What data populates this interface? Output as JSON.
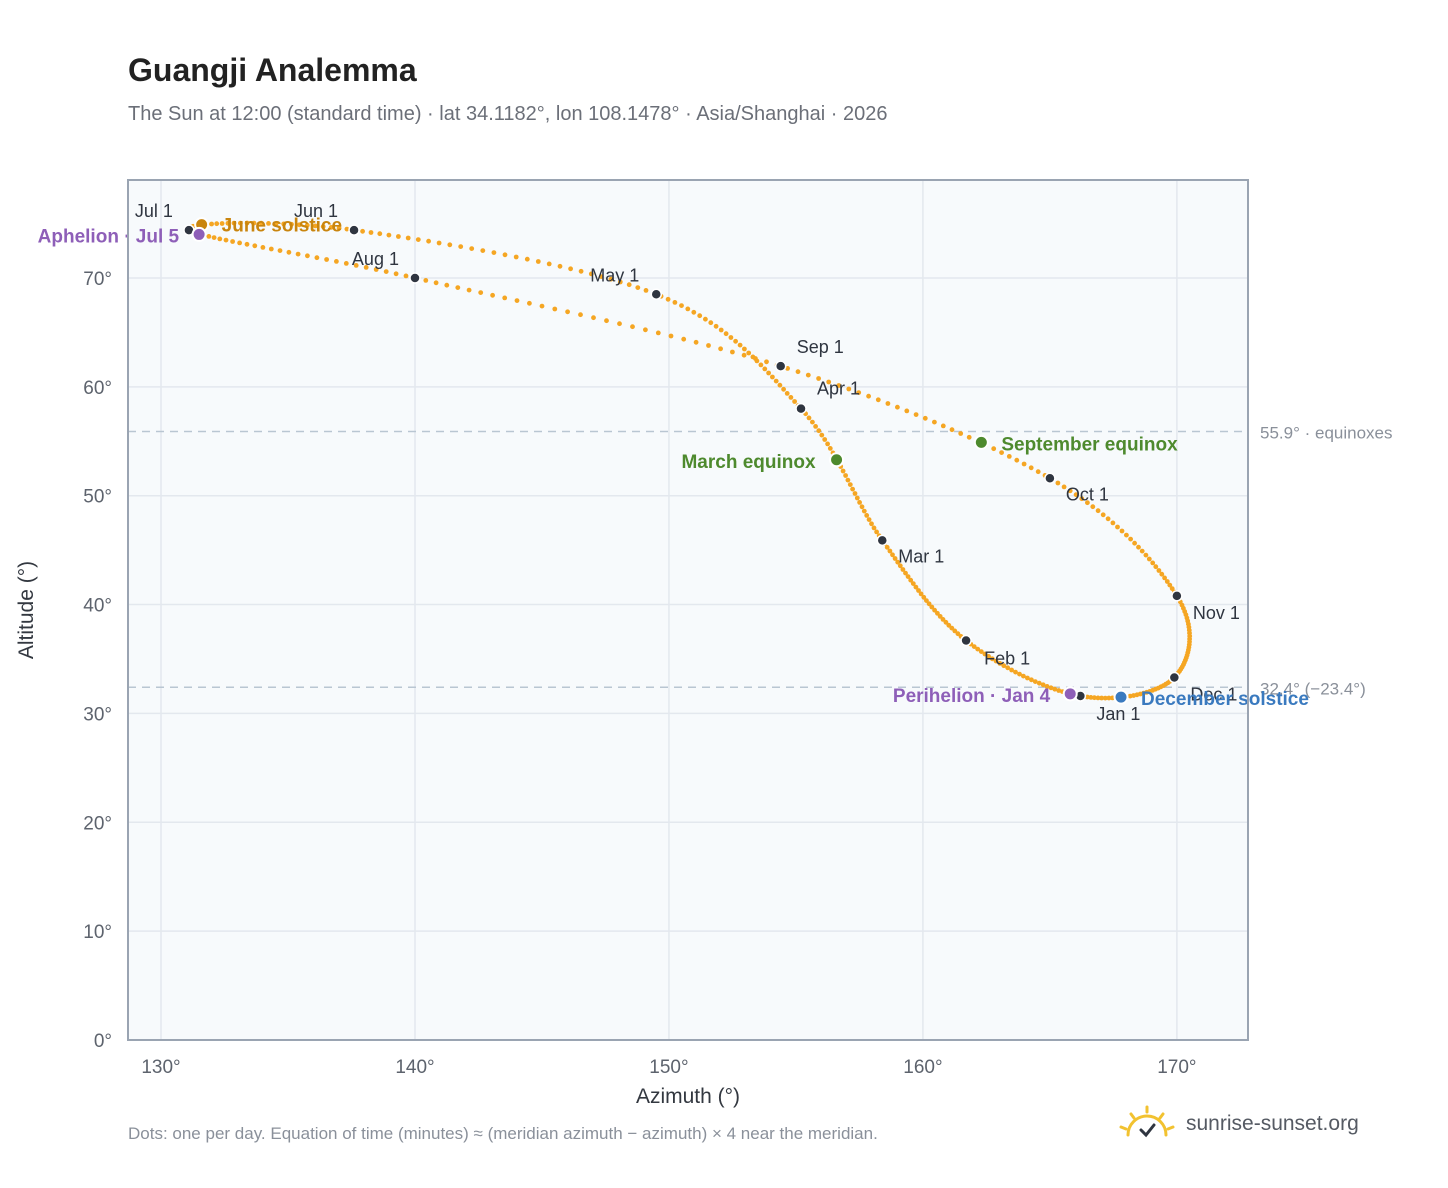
{
  "header": {
    "title": "Guangji Analemma",
    "subtitle": "The Sun at 12:00 (standard time) · lat 34.1182°, lon 108.1478° · Asia/Shanghai · 2026"
  },
  "footer": {
    "note": "Dots: one per day. Equation of time (minutes) ≈ (meridian azimuth − azimuth) × 4 near the meridian.",
    "brand": "sunrise-sunset.org",
    "brand_icon": "sun-icon",
    "brand_color": "#f2c230"
  },
  "chart_data": {
    "type": "scatter",
    "xlabel": "Azimuth (°)",
    "ylabel": "Altitude (°)",
    "xlim": [
      128.7,
      172.8
    ],
    "ylim": [
      0,
      79
    ],
    "x_ticks": [
      130,
      140,
      150,
      160,
      170
    ],
    "y_ticks": [
      0,
      10,
      20,
      30,
      40,
      50,
      60,
      70
    ],
    "tick_suffix": "°",
    "grid": true,
    "colors": {
      "curve": "#f5a623",
      "month_marker": "#2f3540",
      "solstice_june": "#c9850e",
      "solstice_december": "#3a7abf",
      "equinox": "#4e8a2e",
      "apsis": "#8e5fb8",
      "reference_line": "#b9c6d2",
      "plot_bg": "#f7fafc",
      "frame": "#9aa4b2",
      "grid": "#e3e8ee"
    },
    "reference_lines": [
      {
        "y": 55.9,
        "label": "55.9° · equinoxes"
      },
      {
        "y": 32.4,
        "label": "32.4° (−23.4°)"
      }
    ],
    "month_markers": [
      {
        "label": "Jan 1",
        "azimuth": 166.2,
        "altitude": 31.6
      },
      {
        "label": "Feb 1",
        "azimuth": 161.7,
        "altitude": 36.7
      },
      {
        "label": "Mar 1",
        "azimuth": 158.4,
        "altitude": 45.9
      },
      {
        "label": "Apr 1",
        "azimuth": 155.2,
        "altitude": 58.0
      },
      {
        "label": "May 1",
        "azimuth": 149.5,
        "altitude": 68.5
      },
      {
        "label": "Jun 1",
        "azimuth": 137.6,
        "altitude": 74.4
      },
      {
        "label": "Jul 1",
        "azimuth": 131.1,
        "altitude": 74.4
      },
      {
        "label": "Aug 1",
        "azimuth": 140.0,
        "altitude": 70.0
      },
      {
        "label": "Sep 1",
        "azimuth": 154.4,
        "altitude": 61.9
      },
      {
        "label": "Oct 1",
        "azimuth": 165.0,
        "altitude": 51.6
      },
      {
        "label": "Nov 1",
        "azimuth": 170.0,
        "altitude": 40.8
      },
      {
        "label": "Dec 1",
        "azimuth": 169.9,
        "altitude": 33.3
      }
    ],
    "events": [
      {
        "label": "June solstice",
        "azimuth": 131.6,
        "altitude": 74.9,
        "color_key": "solstice_june"
      },
      {
        "label": "Aphelion · Jul 5",
        "azimuth": 131.5,
        "altitude": 74.0,
        "color_key": "apsis"
      },
      {
        "label": "March equinox",
        "azimuth": 156.6,
        "altitude": 53.3,
        "color_key": "equinox"
      },
      {
        "label": "September equinox",
        "azimuth": 162.3,
        "altitude": 54.9,
        "color_key": "equinox"
      },
      {
        "label": "Perihelion · Jan 4",
        "azimuth": 165.8,
        "altitude": 31.8,
        "color_key": "apsis"
      },
      {
        "label": "December solstice",
        "azimuth": 167.8,
        "altitude": 31.5,
        "color_key": "solstice_december"
      }
    ]
  }
}
